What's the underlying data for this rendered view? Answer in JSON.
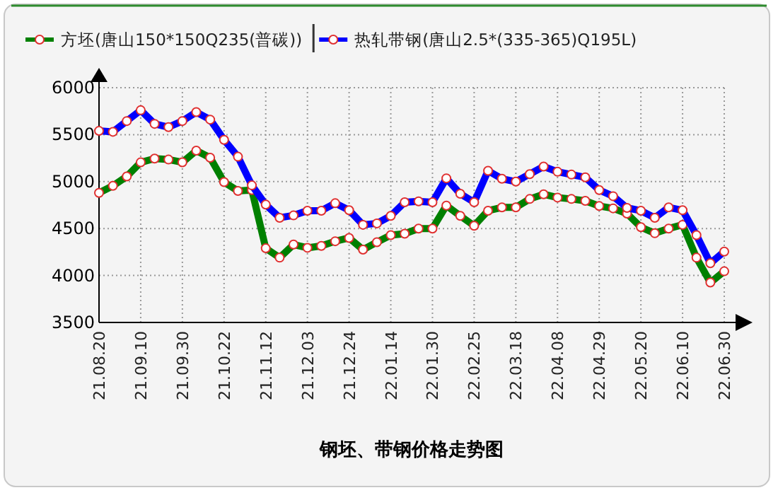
{
  "chart_data": {
    "type": "line",
    "title": "钢坯、带钢价格走势图",
    "categories": [
      "21.08.20",
      null,
      null,
      "21.09.10",
      null,
      null,
      "21.09.30",
      null,
      null,
      "21.10.22",
      null,
      null,
      "21.11.12",
      null,
      null,
      "21.12.03",
      null,
      null,
      "21.12.24",
      null,
      null,
      "22.01.14",
      null,
      null,
      "22.01.30",
      null,
      null,
      "22.02.25",
      null,
      null,
      "22.03.18",
      null,
      null,
      "22.04.08",
      null,
      null,
      "22.04.29",
      null,
      null,
      "22.05.20",
      null,
      null,
      "22.06.10",
      null,
      null,
      "22.06.30"
    ],
    "series": [
      {
        "name": "方坯(唐山150*150Q235(普碳))",
        "color": "#008000",
        "values": [
          4880,
          4955,
          5055,
          5205,
          5245,
          5235,
          5205,
          5330,
          5255,
          4995,
          4900,
          4910,
          4290,
          4190,
          4330,
          4295,
          4315,
          4365,
          4400,
          4275,
          4355,
          4430,
          4445,
          4500,
          4500,
          4745,
          4635,
          4530,
          4690,
          4725,
          4725,
          4815,
          4865,
          4830,
          4815,
          4795,
          4740,
          4715,
          4660,
          4515,
          4450,
          4500,
          4540,
          4190,
          3925,
          4045
        ]
      },
      {
        "name": "热轧带钢(唐山2.5*(335-365)Q195L)",
        "color": "#0000ff",
        "values": [
          5540,
          5530,
          5645,
          5760,
          5615,
          5580,
          5645,
          5740,
          5660,
          5445,
          5265,
          4960,
          4755,
          4615,
          4640,
          4690,
          4690,
          4770,
          4695,
          4540,
          4555,
          4635,
          4780,
          4790,
          4780,
          5035,
          4870,
          4780,
          5115,
          5030,
          5000,
          5080,
          5160,
          5105,
          5075,
          5045,
          4910,
          4845,
          4720,
          4690,
          4615,
          4725,
          4695,
          4430,
          4130,
          4255
        ]
      }
    ],
    "ylim": [
      3500,
      6000
    ],
    "yticks": [
      3500,
      4000,
      4500,
      5000,
      5500,
      6000
    ],
    "grid": true,
    "legend": "top",
    "marker": "circle"
  }
}
